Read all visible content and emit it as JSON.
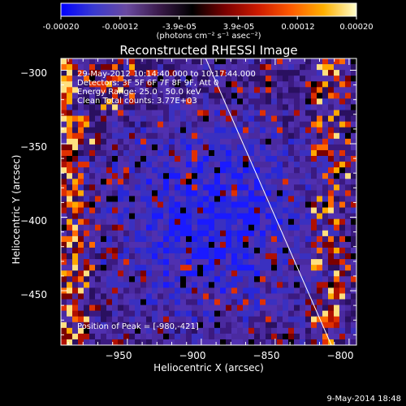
{
  "colorbar": {
    "tick_labels": [
      "-0.00020",
      "-0.00012",
      "-3.9e-05",
      "3.9e-05",
      "0.00012",
      "0.00020"
    ],
    "units_label": "(photons cm⁻² s⁻¹ asec⁻²)",
    "colors": [
      "#0000ff",
      "#3a3ad0",
      "#6a4aa0",
      "#3a1a4a",
      "#000000",
      "#7a0000",
      "#cc1a00",
      "#ff5a00",
      "#ffb000",
      "#ffffcc"
    ]
  },
  "plot": {
    "title": "Reconstructed RHESSI Image",
    "info_lines": [
      "29-May-2012 10:14:40.000 to 10:17:44.000",
      "Detectors: 3F 5F 6F 7F 8F 9F, Att 0",
      "Energy Range: 25.0 - 50.0 keV",
      "Clean    Total counts: 3.77E+03"
    ],
    "peak_text": "Position of Peak = [-980,-421]",
    "footer_date": "9-May-2014 18:48"
  },
  "chart_data": {
    "type": "heatmap",
    "title": "Reconstructed RHESSI Image",
    "xlabel": "Heliocentric X (arcsec)",
    "ylabel": "Heliocentric Y (arcsec)",
    "xlim": [
      -995,
      -795
    ],
    "ylim": [
      -487,
      -292
    ],
    "xticks": [
      -950,
      -900,
      -850,
      -800
    ],
    "yticks": [
      -300,
      -350,
      -400,
      -450
    ],
    "xtick_labels": [
      "−950",
      "−900",
      "−850",
      "−800"
    ],
    "ytick_labels": [
      "−300",
      "−350",
      "−400",
      "−450"
    ],
    "colorbar_range": [
      -0.0002,
      0.0002
    ],
    "limb_line": {
      "x": [
        -897,
        -812
      ],
      "y": [
        -292,
        -487
      ]
    },
    "peak": [
      -980,
      -421
    ]
  }
}
